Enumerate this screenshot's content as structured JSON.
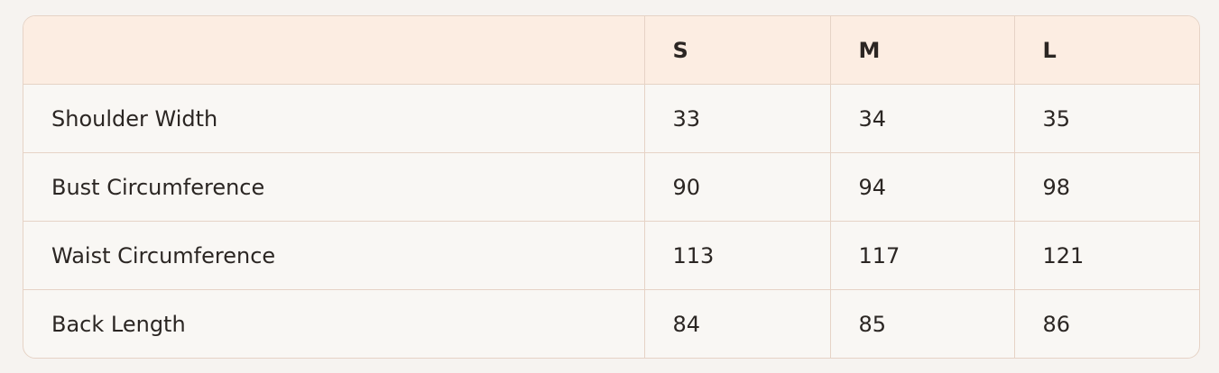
{
  "table": {
    "headers": [
      "",
      "S",
      "M",
      "L"
    ],
    "rows": [
      {
        "label": "Shoulder Width",
        "values": [
          "33",
          "34",
          "35"
        ]
      },
      {
        "label": "Bust Circumference",
        "values": [
          "90",
          "94",
          "98"
        ]
      },
      {
        "label": "Waist Circumference",
        "values": [
          "113",
          "117",
          "121"
        ]
      },
      {
        "label": "Back Length",
        "values": [
          "84",
          "85",
          "86"
        ]
      }
    ]
  },
  "colors": {
    "header_bg": "#fcede2",
    "body_bg": "#f9f7f4",
    "border": "#e6d3c6"
  }
}
